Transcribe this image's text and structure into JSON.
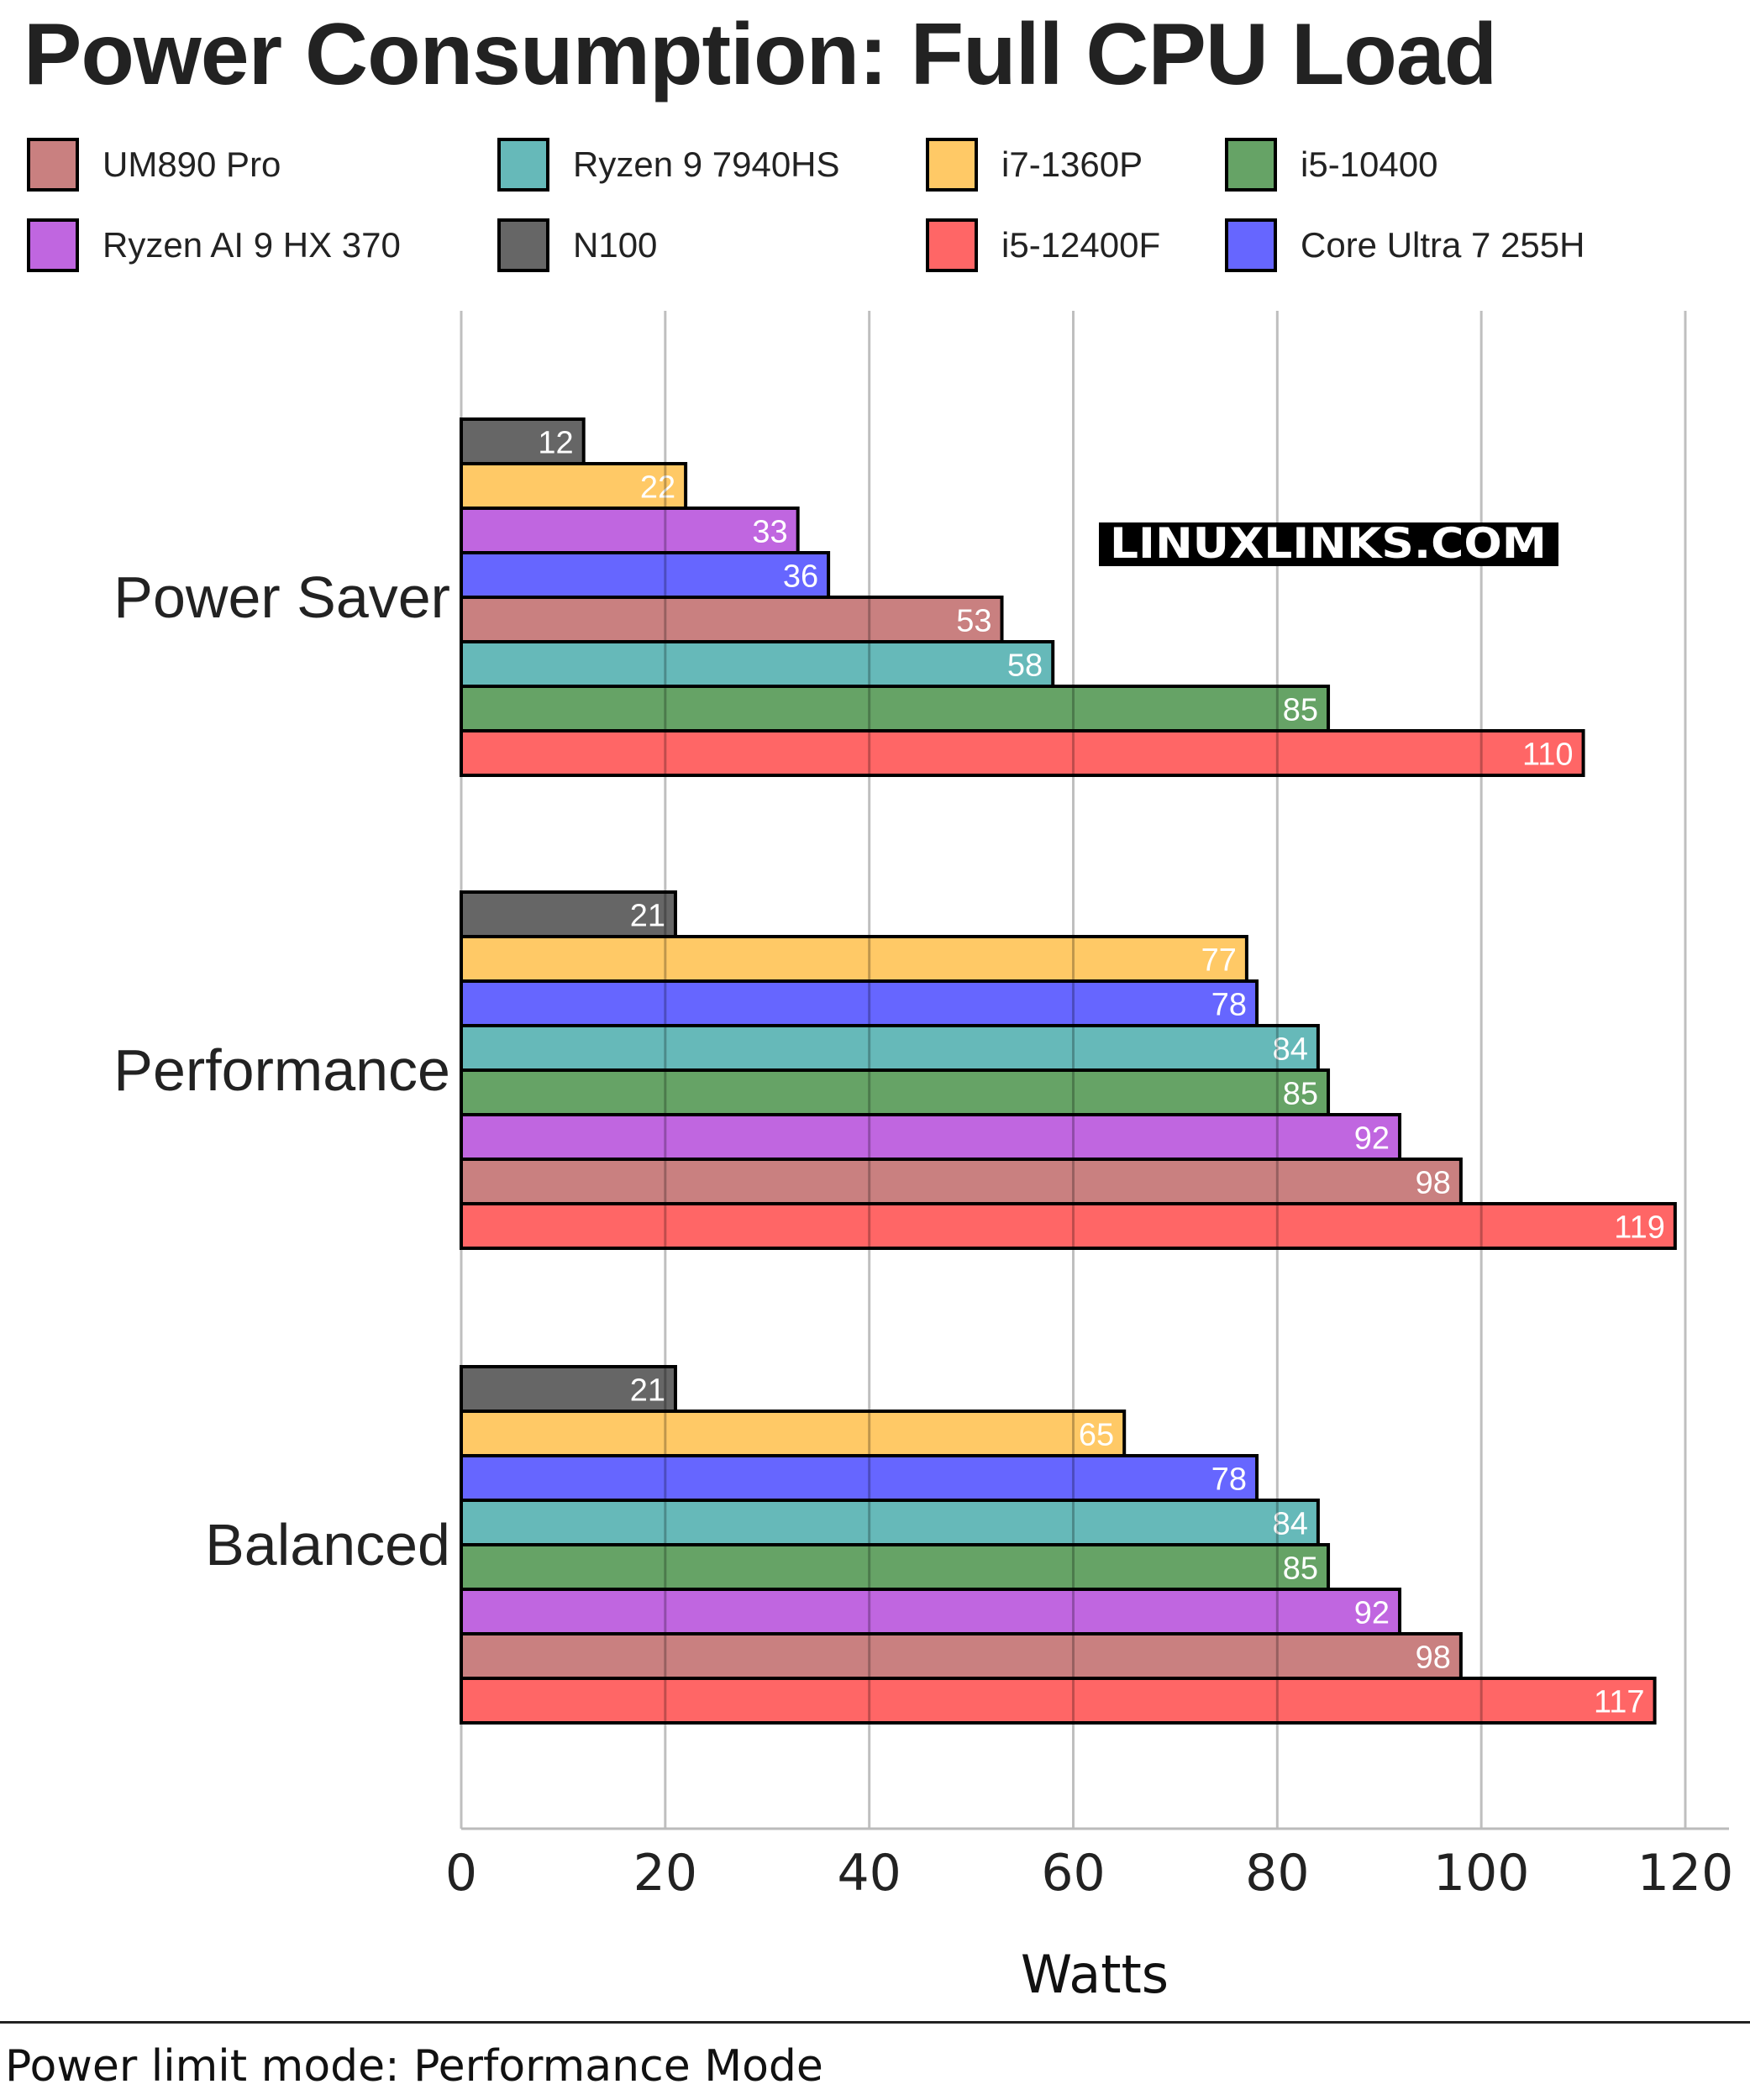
{
  "chart_data": {
    "type": "bar",
    "orientation": "horizontal",
    "title": "Power Consumption: Full CPU Load",
    "xlabel": "Watts",
    "ylabel": "",
    "xlim": [
      0,
      124
    ],
    "xticks": [
      0,
      20,
      40,
      60,
      80,
      100,
      120
    ],
    "grid": true,
    "legend_position": "top",
    "categories": [
      "Power Saver",
      "Performance",
      "Balanced"
    ],
    "series": [
      {
        "name": "UM890 Pro",
        "color": "#c98080",
        "values": [
          53,
          98,
          98
        ]
      },
      {
        "name": "Ryzen 9 7940HS",
        "color": "#66b9b9",
        "values": [
          58,
          84,
          84
        ]
      },
      {
        "name": "i7-1360P",
        "color": "#ffc966",
        "values": [
          22,
          77,
          65
        ]
      },
      {
        "name": "i5-10400",
        "color": "#66a366",
        "values": [
          85,
          85,
          85
        ]
      },
      {
        "name": "Ryzen AI 9 HX 370",
        "color": "#c066e0",
        "values": [
          33,
          92,
          92
        ]
      },
      {
        "name": "N100",
        "color": "#666666",
        "values": [
          12,
          21,
          21
        ]
      },
      {
        "name": "i5-12400F",
        "color": "#ff6666",
        "values": [
          110,
          119,
          117
        ]
      },
      {
        "name": "Core Ultra 7 255H",
        "color": "#6666ff",
        "values": [
          36,
          78,
          78
        ]
      }
    ],
    "bar_order_within_group": "ascending by value",
    "watermark": "LINUXLINKS.COM",
    "footer": "Power limit mode: Performance Mode"
  }
}
